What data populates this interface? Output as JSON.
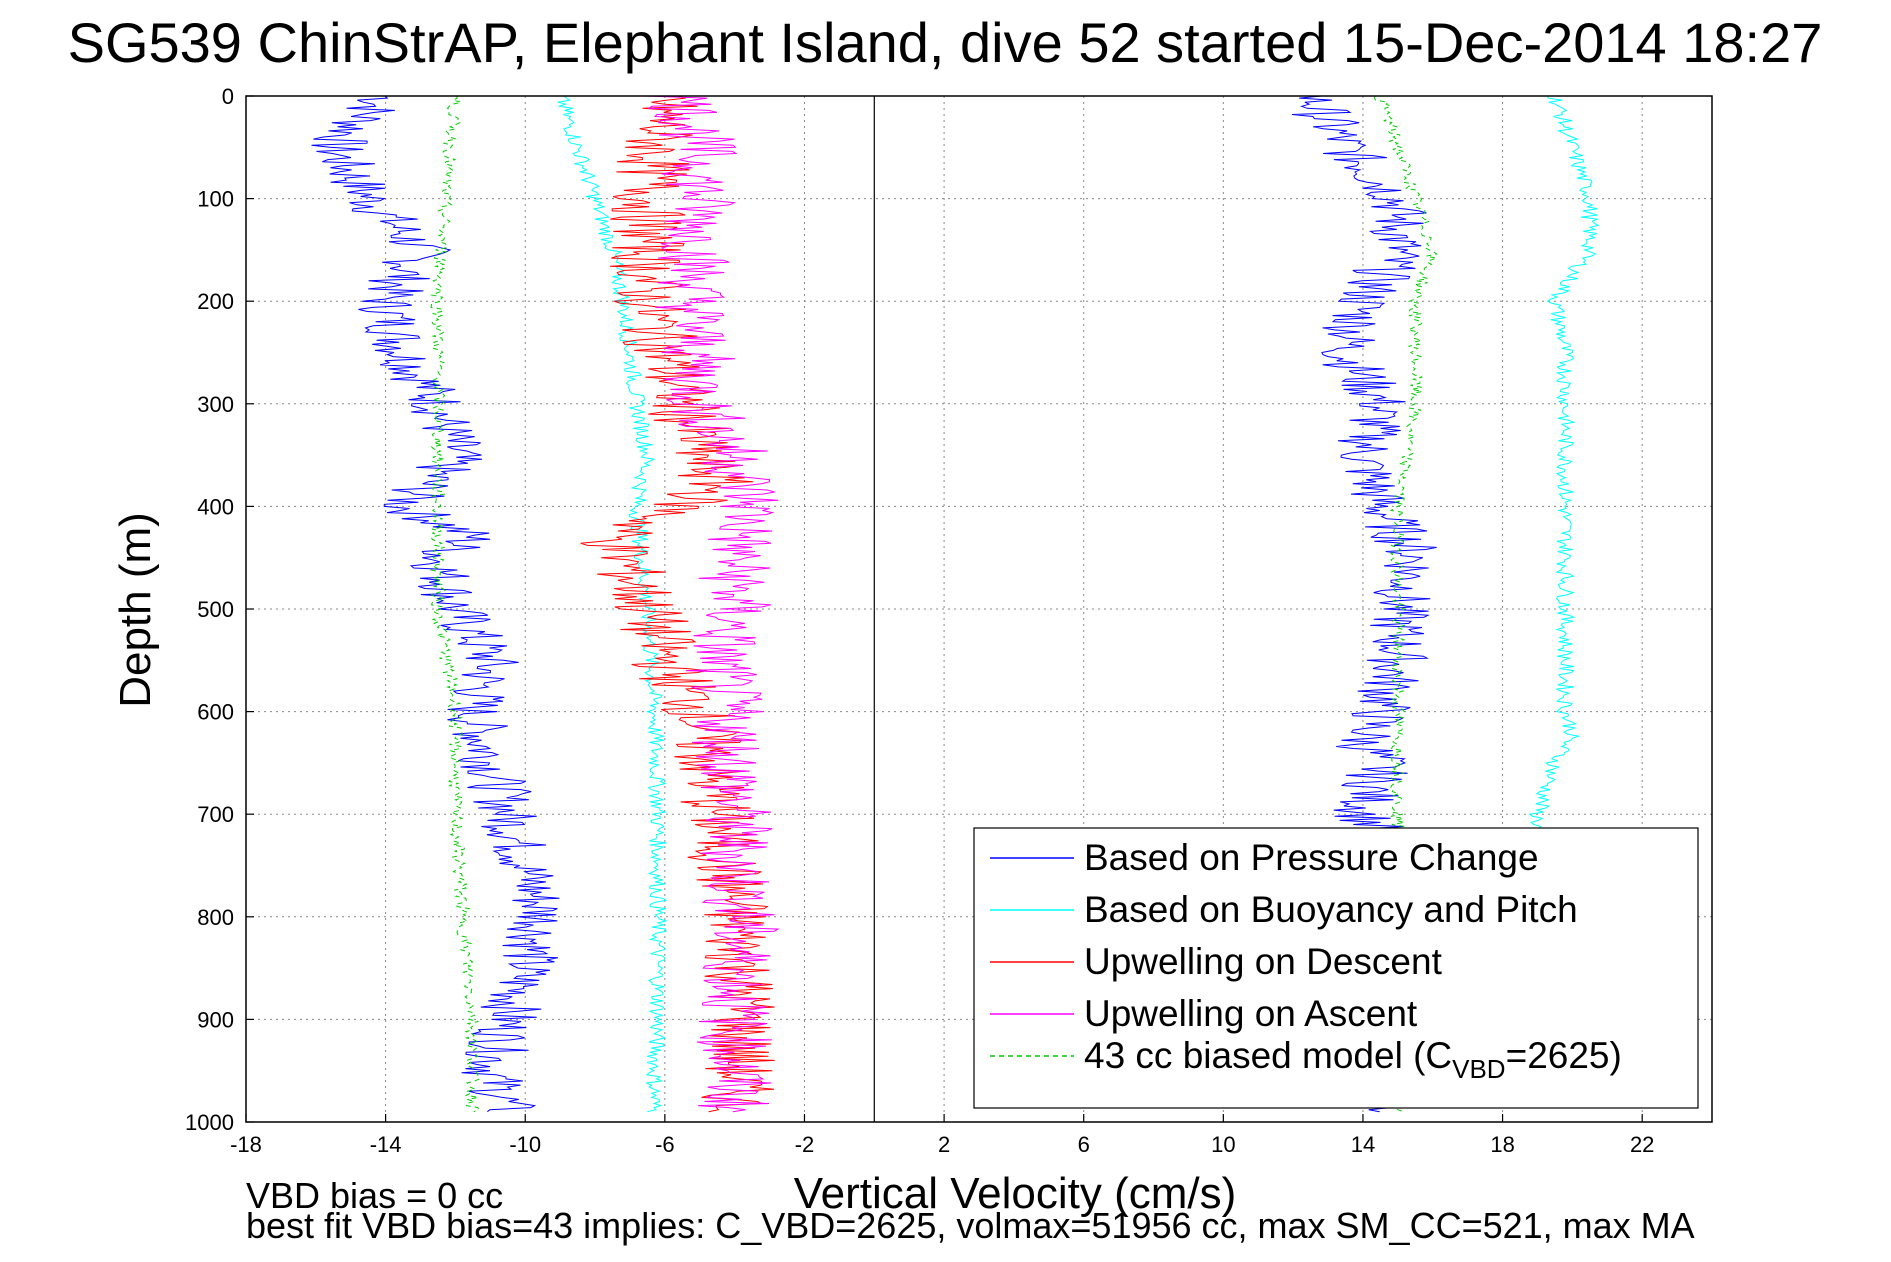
{
  "title": "SG539 ChinStrAP, Elephant Island, dive 52 started 15-Dec-2014 18:27",
  "xlabel": "Vertical Velocity (cm/s)",
  "ylabel": "Depth (m)",
  "notes": {
    "line1": "VBD bias = 0 cc",
    "line2": "best fit VBD bias=43 implies: C_VBD=2625, volmax=51956 cc, max SM_CC=521, max MA"
  },
  "legend": [
    {
      "label": "Based on Pressure Change",
      "color": "#0000ff",
      "dash": false
    },
    {
      "label": "Based on Buoyancy and Pitch",
      "color": "#00ffff",
      "dash": false
    },
    {
      "label": "Upwelling on Descent",
      "color": "#ff0000",
      "dash": false
    },
    {
      "label": "Upwelling on Ascent",
      "color": "#ff00ff",
      "dash": false
    },
    {
      "label_main": "43 cc biased model (C",
      "label_sub": "VBD",
      "label_end": "=2625)",
      "color": "#00cc00",
      "dash": true
    }
  ],
  "chart_data": {
    "type": "line",
    "title": "SG539 ChinStrAP, Elephant Island, dive 52 started 15-Dec-2014 18:27",
    "xlabel": "Vertical Velocity (cm/s)",
    "ylabel": "Depth (m)",
    "xlim": [
      -18,
      24
    ],
    "ylim": [
      0,
      1000
    ],
    "y_reversed": true,
    "grid": true,
    "legend_position": "bottom-right",
    "x_ticks": [
      "-18",
      "-14",
      "-10",
      "-6",
      "-2",
      "2",
      "6",
      "10",
      "14",
      "18",
      "22"
    ],
    "y_ticks": [
      "0",
      "100",
      "200",
      "300",
      "400",
      "500",
      "600",
      "700",
      "800",
      "900",
      "1000"
    ],
    "zero_line_x": 0,
    "series": [
      {
        "name": "Based on Pressure Change",
        "color": "#0000ff",
        "dash": false,
        "descent_x": [
          -14.0,
          -15.5,
          -14.5,
          -13.0,
          -14.0,
          -13.5,
          -12.5,
          -12.0,
          -13.5,
          -11.5,
          -12.5,
          -12.0,
          -11.0,
          -11.5,
          -11.0,
          -10.5,
          -9.5,
          -10.0,
          -10.5,
          -11.0,
          -10.5
        ],
        "ascent_x": [
          12.5,
          13.5,
          15.0,
          15.0,
          14.0,
          13.5,
          14.5,
          14.0,
          14.5,
          15.5,
          15.0,
          15.0,
          14.5,
          14.0,
          14.5,
          14.0,
          14.5,
          14.0
        ],
        "depth_desc": [
          0,
          50,
          100,
          150,
          200,
          250,
          300,
          350,
          400,
          430,
          450,
          500,
          550,
          600,
          650,
          700,
          800,
          850,
          900,
          950,
          990
        ],
        "depth_asc": [
          0,
          50,
          100,
          150,
          200,
          250,
          300,
          350,
          400,
          450,
          500,
          550,
          600,
          630,
          650,
          700,
          720,
          990
        ]
      },
      {
        "name": "Based on Buoyancy and Pitch",
        "color": "#00ffff",
        "dash": false,
        "descent_x": [
          -9.0,
          -8.5,
          -8.0,
          -7.5,
          -7.2,
          -7.0,
          -6.8,
          -6.5,
          -6.8,
          -6.5,
          -6.3,
          -6.2,
          -6.2,
          -6.2,
          -6.3,
          -6.3
        ],
        "ascent_x": [
          19.5,
          20.0,
          20.5,
          20.5,
          19.5,
          19.8,
          19.8,
          19.8,
          19.8,
          19.8,
          19.8,
          20.0,
          19.5,
          19.0,
          19.0
        ],
        "depth_desc": [
          0,
          50,
          100,
          150,
          200,
          250,
          300,
          350,
          400,
          500,
          600,
          700,
          800,
          900,
          950,
          990
        ],
        "depth_asc": [
          0,
          50,
          100,
          150,
          200,
          250,
          300,
          400,
          500,
          550,
          600,
          620,
          650,
          700,
          720
        ]
      },
      {
        "name": "Upwelling on Descent",
        "color": "#ff0000",
        "dash": false,
        "x": [
          -6.0,
          -6.5,
          -6.5,
          -6.0,
          -5.5,
          -5.0,
          -4.5,
          -5.5,
          -7.5,
          -6.5,
          -6.0,
          -5.0,
          -4.5,
          -4.0,
          -3.8,
          -3.8,
          -4.0
        ],
        "depth": [
          0,
          100,
          200,
          250,
          300,
          350,
          380,
          400,
          430,
          500,
          550,
          600,
          700,
          800,
          850,
          900,
          990
        ]
      },
      {
        "name": "Upwelling on Ascent",
        "color": "#ff00ff",
        "dash": false,
        "x": [
          -5.5,
          -5.0,
          -5.0,
          -5.2,
          -5.0,
          -4.0,
          -3.5,
          -4.0,
          -4.0,
          -4.5,
          -4.2,
          -4.0,
          -3.8,
          -4.0,
          -4.0
        ],
        "depth": [
          0,
          50,
          100,
          200,
          300,
          350,
          400,
          450,
          500,
          550,
          600,
          700,
          800,
          900,
          990
        ]
      },
      {
        "name": "43 cc biased model (CVBD=2625)",
        "color": "#00cc00",
        "dash": true,
        "descent_x": [
          -12.0,
          -12.3,
          -12.5,
          -12.5,
          -12.5,
          -12.5,
          -12.0,
          -12.0,
          -11.8,
          -11.5,
          -11.5,
          -11.5
        ],
        "ascent_x": [
          14.5,
          15.0,
          15.5,
          16.0,
          15.5,
          15.5,
          15.0,
          15.0,
          15.0,
          15.0,
          15.0,
          15.0,
          15.0
        ],
        "depth_desc": [
          0,
          100,
          200,
          300,
          400,
          500,
          600,
          700,
          800,
          900,
          950,
          990
        ],
        "depth_asc": [
          0,
          50,
          100,
          150,
          200,
          300,
          400,
          500,
          600,
          650,
          700,
          800,
          990
        ]
      }
    ]
  }
}
